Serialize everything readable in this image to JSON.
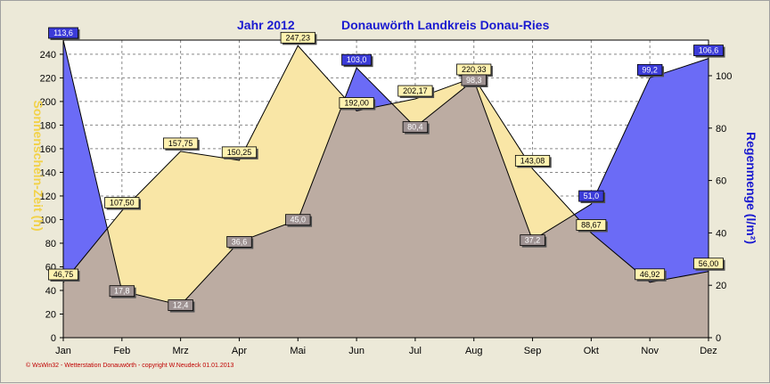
{
  "chart_data": {
    "type": "area",
    "title": "Jahr  2012",
    "subtitle": "Donauwörth Landkreis Donau-Ries",
    "categories": [
      "Jan",
      "Feb",
      "Mrz",
      "Apr",
      "Mai",
      "Jun",
      "Jul",
      "Aug",
      "Sep",
      "Okt",
      "Nov",
      "Dez"
    ],
    "series": [
      {
        "axis": "left",
        "color": "#f9e6a6",
        "values": [
          46.75,
          107.5,
          157.75,
          150.25,
          247.23,
          192.0,
          202.17,
          220.33,
          143.08,
          88.67,
          46.92,
          56.0
        ],
        "labels": [
          "46,75",
          "107,50",
          "157,75",
          "150,25",
          "247,23",
          "192,00",
          "202,17",
          "220,33",
          "143,08",
          "88,67",
          "46,92",
          "56,00"
        ]
      },
      {
        "axis": "right",
        "color": "#6b6bf6",
        "values": [
          113.6,
          17.8,
          12.4,
          36.6,
          45.0,
          103.0,
          80.4,
          98.3,
          37.2,
          51.0,
          99.2,
          106.6
        ],
        "labels": [
          "113,6",
          "17,8",
          "12,4",
          "36,6",
          "45,0",
          "103,0",
          "80,4",
          "98,3",
          "37,2",
          "51,0",
          "99,2",
          "106,6"
        ]
      }
    ],
    "ylabel": "Sonnenschein-Zeit   (h)",
    "y2label": "Regenmenge   (l/m²)",
    "ylim": [
      0,
      252
    ],
    "y2lim": [
      0,
      113.6
    ],
    "yticks": [
      0,
      20,
      40,
      60,
      80,
      100,
      120,
      140,
      160,
      180,
      200,
      220,
      240
    ],
    "y2ticks": [
      0,
      20,
      40,
      60,
      80,
      100
    ],
    "overlap_color": "#bcaca2",
    "grid": true,
    "footer": "© WsWin32  -  Wetterstation Donauwörth  -  copyright W.Neudeck  01.01.2013"
  }
}
